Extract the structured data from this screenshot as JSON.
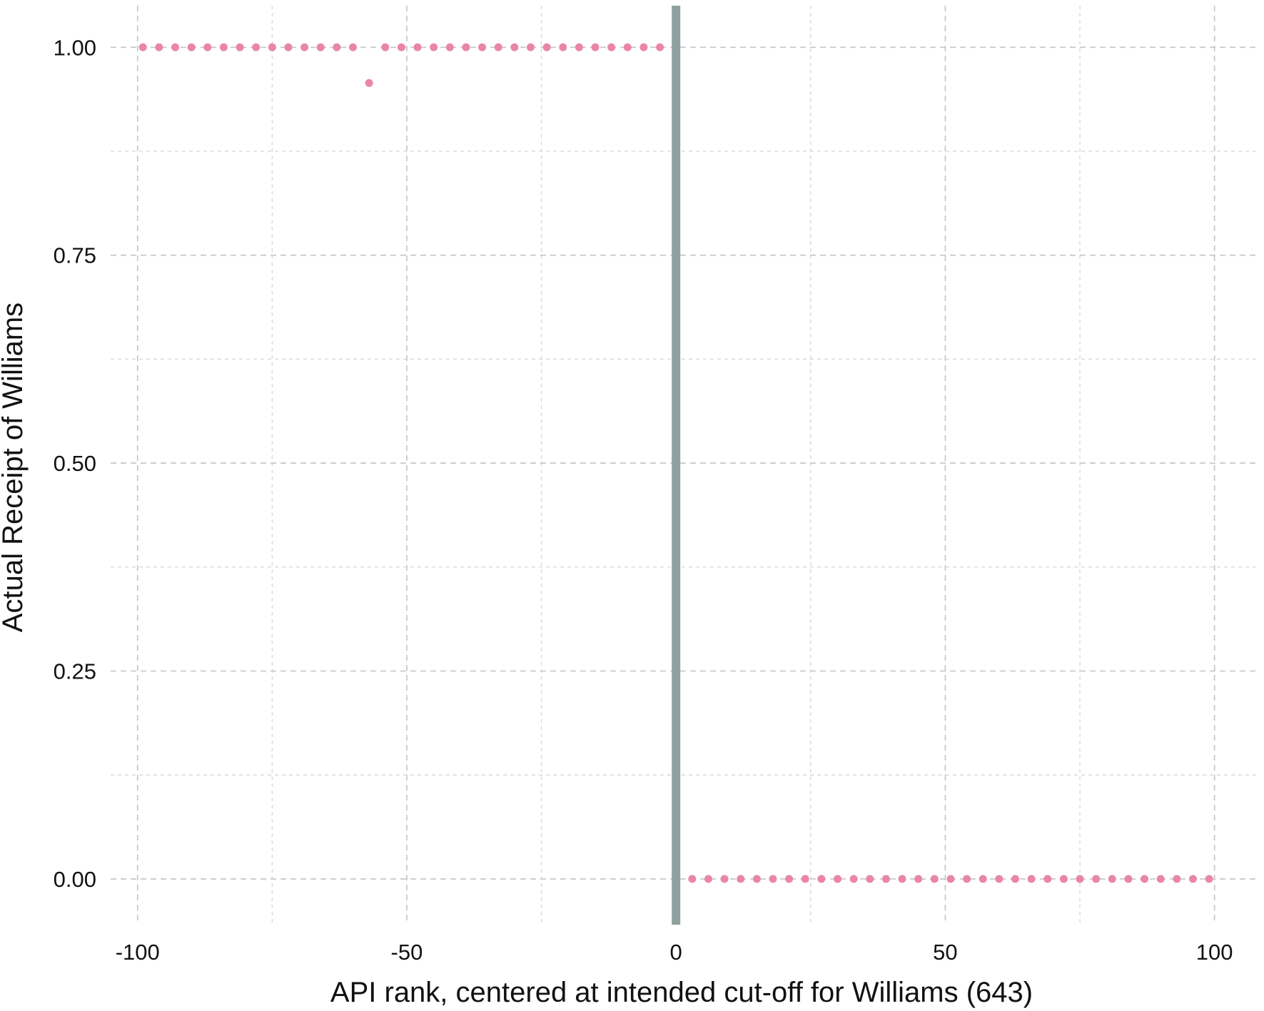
{
  "chart_data": {
    "type": "scatter",
    "title": "",
    "xlabel": "API rank, centered at intended cut-off for Williams (643)",
    "ylabel": "Actual Receipt of Williams",
    "xlim": [
      -105,
      108
    ],
    "ylim": [
      -0.055,
      1.05
    ],
    "x_ticks": [
      -100,
      -50,
      0,
      50,
      100
    ],
    "x_tick_labels": [
      "-100",
      "-50",
      "0",
      "50",
      "100"
    ],
    "y_ticks": [
      0,
      0.25,
      0.5,
      0.75,
      1
    ],
    "y_tick_labels": [
      "0.00",
      "0.25",
      "0.50",
      "0.75",
      "1.00"
    ],
    "grid": true,
    "grid_style": "dashed",
    "cutoff_line": {
      "x": 0,
      "color": "#8fa09e"
    },
    "point_color": "#e986a6",
    "series": [
      {
        "x": [
          -99,
          -96,
          -93,
          -90,
          -87,
          -84,
          -81,
          -78,
          -75,
          -72,
          -69,
          -66,
          -63,
          -60,
          -57,
          -54,
          -51,
          -48,
          -45,
          -42,
          -39,
          -36,
          -33,
          -30,
          -27,
          -24,
          -21,
          -18,
          -15,
          -12,
          -9,
          -6,
          -3,
          3,
          6,
          9,
          12,
          15,
          18,
          21,
          24,
          27,
          30,
          33,
          36,
          39,
          42,
          45,
          48,
          51,
          54,
          57,
          60,
          63,
          66,
          69,
          72,
          75,
          78,
          81,
          84,
          87,
          90,
          93,
          96,
          99
        ],
        "y": [
          1,
          1,
          1,
          1,
          1,
          1,
          1,
          1,
          1,
          1,
          1,
          1,
          1,
          1,
          0.957,
          1,
          1,
          1,
          1,
          1,
          1,
          1,
          1,
          1,
          1,
          1,
          1,
          1,
          1,
          1,
          1,
          1,
          1,
          0,
          0,
          0,
          0,
          0,
          0,
          0,
          0,
          0,
          0,
          0,
          0,
          0,
          0,
          0,
          0,
          0,
          0,
          0,
          0,
          0,
          0,
          0,
          0,
          0,
          0,
          0,
          0,
          0,
          0,
          0,
          0,
          0
        ]
      }
    ]
  }
}
